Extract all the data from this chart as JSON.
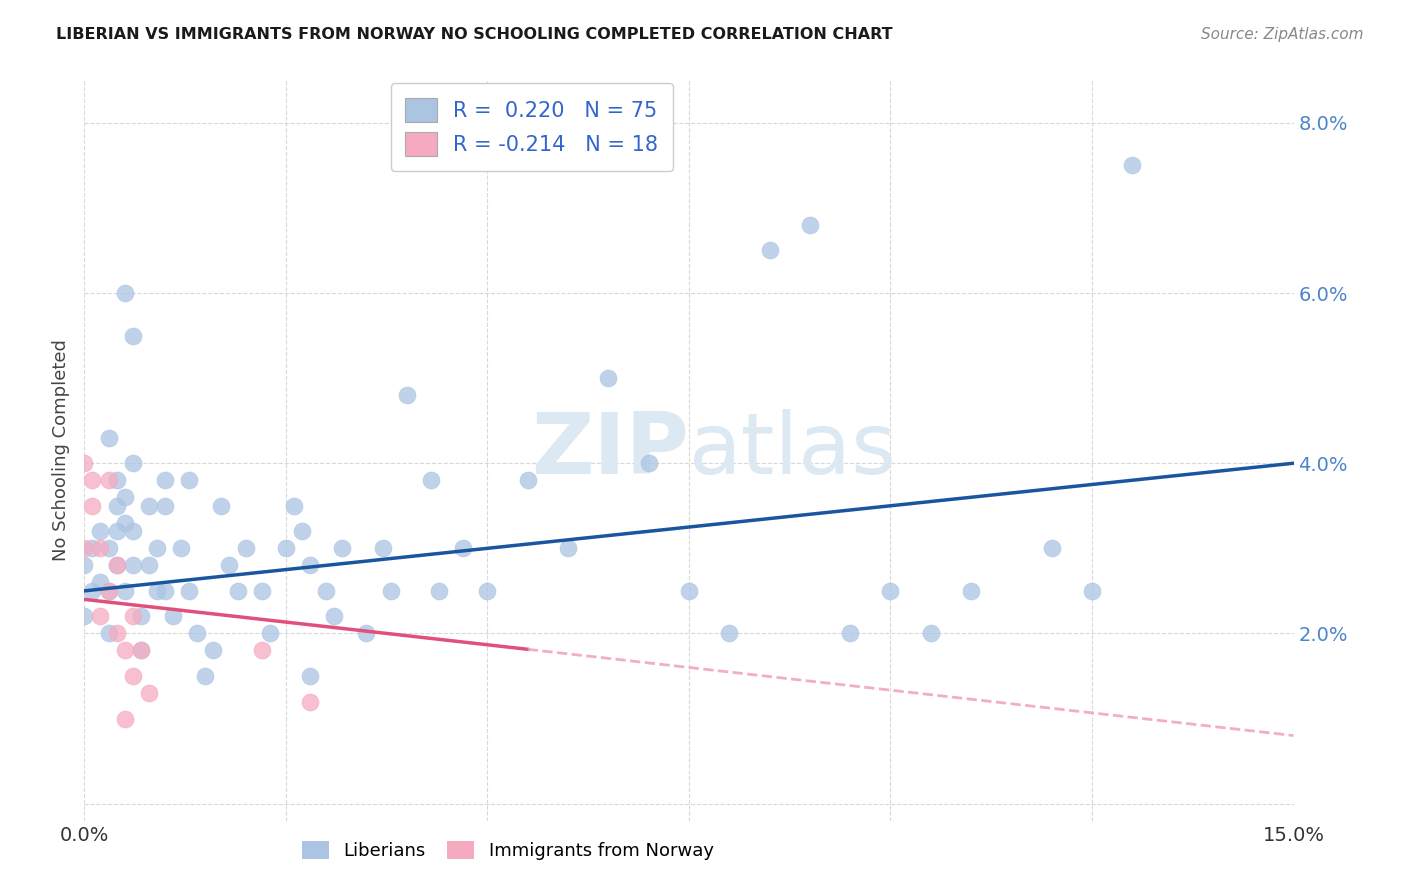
{
  "title": "LIBERIAN VS IMMIGRANTS FROM NORWAY NO SCHOOLING COMPLETED CORRELATION CHART",
  "source": "Source: ZipAtlas.com",
  "ylabel": "No Schooling Completed",
  "xlim": [
    0.0,
    0.15
  ],
  "ylim": [
    -0.002,
    0.085
  ],
  "xticks": [
    0.0,
    0.025,
    0.05,
    0.075,
    0.1,
    0.125,
    0.15
  ],
  "xticklabels": [
    "0.0%",
    "",
    "",
    "",
    "",
    "",
    "15.0%"
  ],
  "yticks": [
    0.0,
    0.02,
    0.04,
    0.06,
    0.08
  ],
  "yticklabels": [
    "",
    "2.0%",
    "4.0%",
    "6.0%",
    "8.0%"
  ],
  "liberian_R": 0.22,
  "liberian_N": 75,
  "norway_R": -0.214,
  "norway_N": 18,
  "liberian_color": "#aac4e2",
  "norway_color": "#f5aabf",
  "liberian_line_color": "#1a56a0",
  "norway_line_color": "#e0507a",
  "norway_line_dashed_color": "#f0a0b8",
  "background_color": "#ffffff",
  "grid_color": "#d8d8d8",
  "watermark_color": "#dce8f2",
  "lib_line_x0": 0.0,
  "lib_line_y0": 0.025,
  "lib_line_x1": 0.15,
  "lib_line_y1": 0.04,
  "nor_line_x0": 0.0,
  "nor_line_y0": 0.024,
  "nor_line_x1": 0.15,
  "nor_line_y1": 0.008,
  "nor_solid_cutoff": 0.055,
  "liberian_x": [
    0.0,
    0.0,
    0.001,
    0.001,
    0.002,
    0.002,
    0.003,
    0.003,
    0.003,
    0.004,
    0.004,
    0.004,
    0.005,
    0.005,
    0.005,
    0.006,
    0.006,
    0.006,
    0.007,
    0.007,
    0.008,
    0.008,
    0.009,
    0.009,
    0.01,
    0.01,
    0.01,
    0.011,
    0.012,
    0.013,
    0.013,
    0.014,
    0.015,
    0.016,
    0.017,
    0.018,
    0.019,
    0.02,
    0.022,
    0.023,
    0.025,
    0.026,
    0.027,
    0.028,
    0.028,
    0.03,
    0.031,
    0.032,
    0.035,
    0.037,
    0.038,
    0.04,
    0.043,
    0.044,
    0.047,
    0.05,
    0.055,
    0.06,
    0.065,
    0.07,
    0.075,
    0.08,
    0.085,
    0.09,
    0.095,
    0.1,
    0.105,
    0.11,
    0.12,
    0.125,
    0.13,
    0.003,
    0.004,
    0.005,
    0.006
  ],
  "liberian_y": [
    0.028,
    0.022,
    0.03,
    0.025,
    0.032,
    0.026,
    0.025,
    0.03,
    0.02,
    0.028,
    0.035,
    0.038,
    0.033,
    0.036,
    0.025,
    0.04,
    0.032,
    0.028,
    0.022,
    0.018,
    0.035,
    0.028,
    0.03,
    0.025,
    0.038,
    0.035,
    0.025,
    0.022,
    0.03,
    0.038,
    0.025,
    0.02,
    0.015,
    0.018,
    0.035,
    0.028,
    0.025,
    0.03,
    0.025,
    0.02,
    0.03,
    0.035,
    0.032,
    0.028,
    0.015,
    0.025,
    0.022,
    0.03,
    0.02,
    0.03,
    0.025,
    0.048,
    0.038,
    0.025,
    0.03,
    0.025,
    0.038,
    0.03,
    0.05,
    0.04,
    0.025,
    0.02,
    0.065,
    0.068,
    0.02,
    0.025,
    0.02,
    0.025,
    0.03,
    0.025,
    0.075,
    0.043,
    0.032,
    0.06,
    0.055
  ],
  "norway_x": [
    0.0,
    0.0,
    0.001,
    0.001,
    0.002,
    0.002,
    0.003,
    0.003,
    0.004,
    0.004,
    0.005,
    0.005,
    0.006,
    0.006,
    0.007,
    0.008,
    0.022,
    0.028
  ],
  "norway_y": [
    0.04,
    0.03,
    0.035,
    0.038,
    0.03,
    0.022,
    0.038,
    0.025,
    0.028,
    0.02,
    0.018,
    0.01,
    0.022,
    0.015,
    0.018,
    0.013,
    0.018,
    0.012
  ]
}
